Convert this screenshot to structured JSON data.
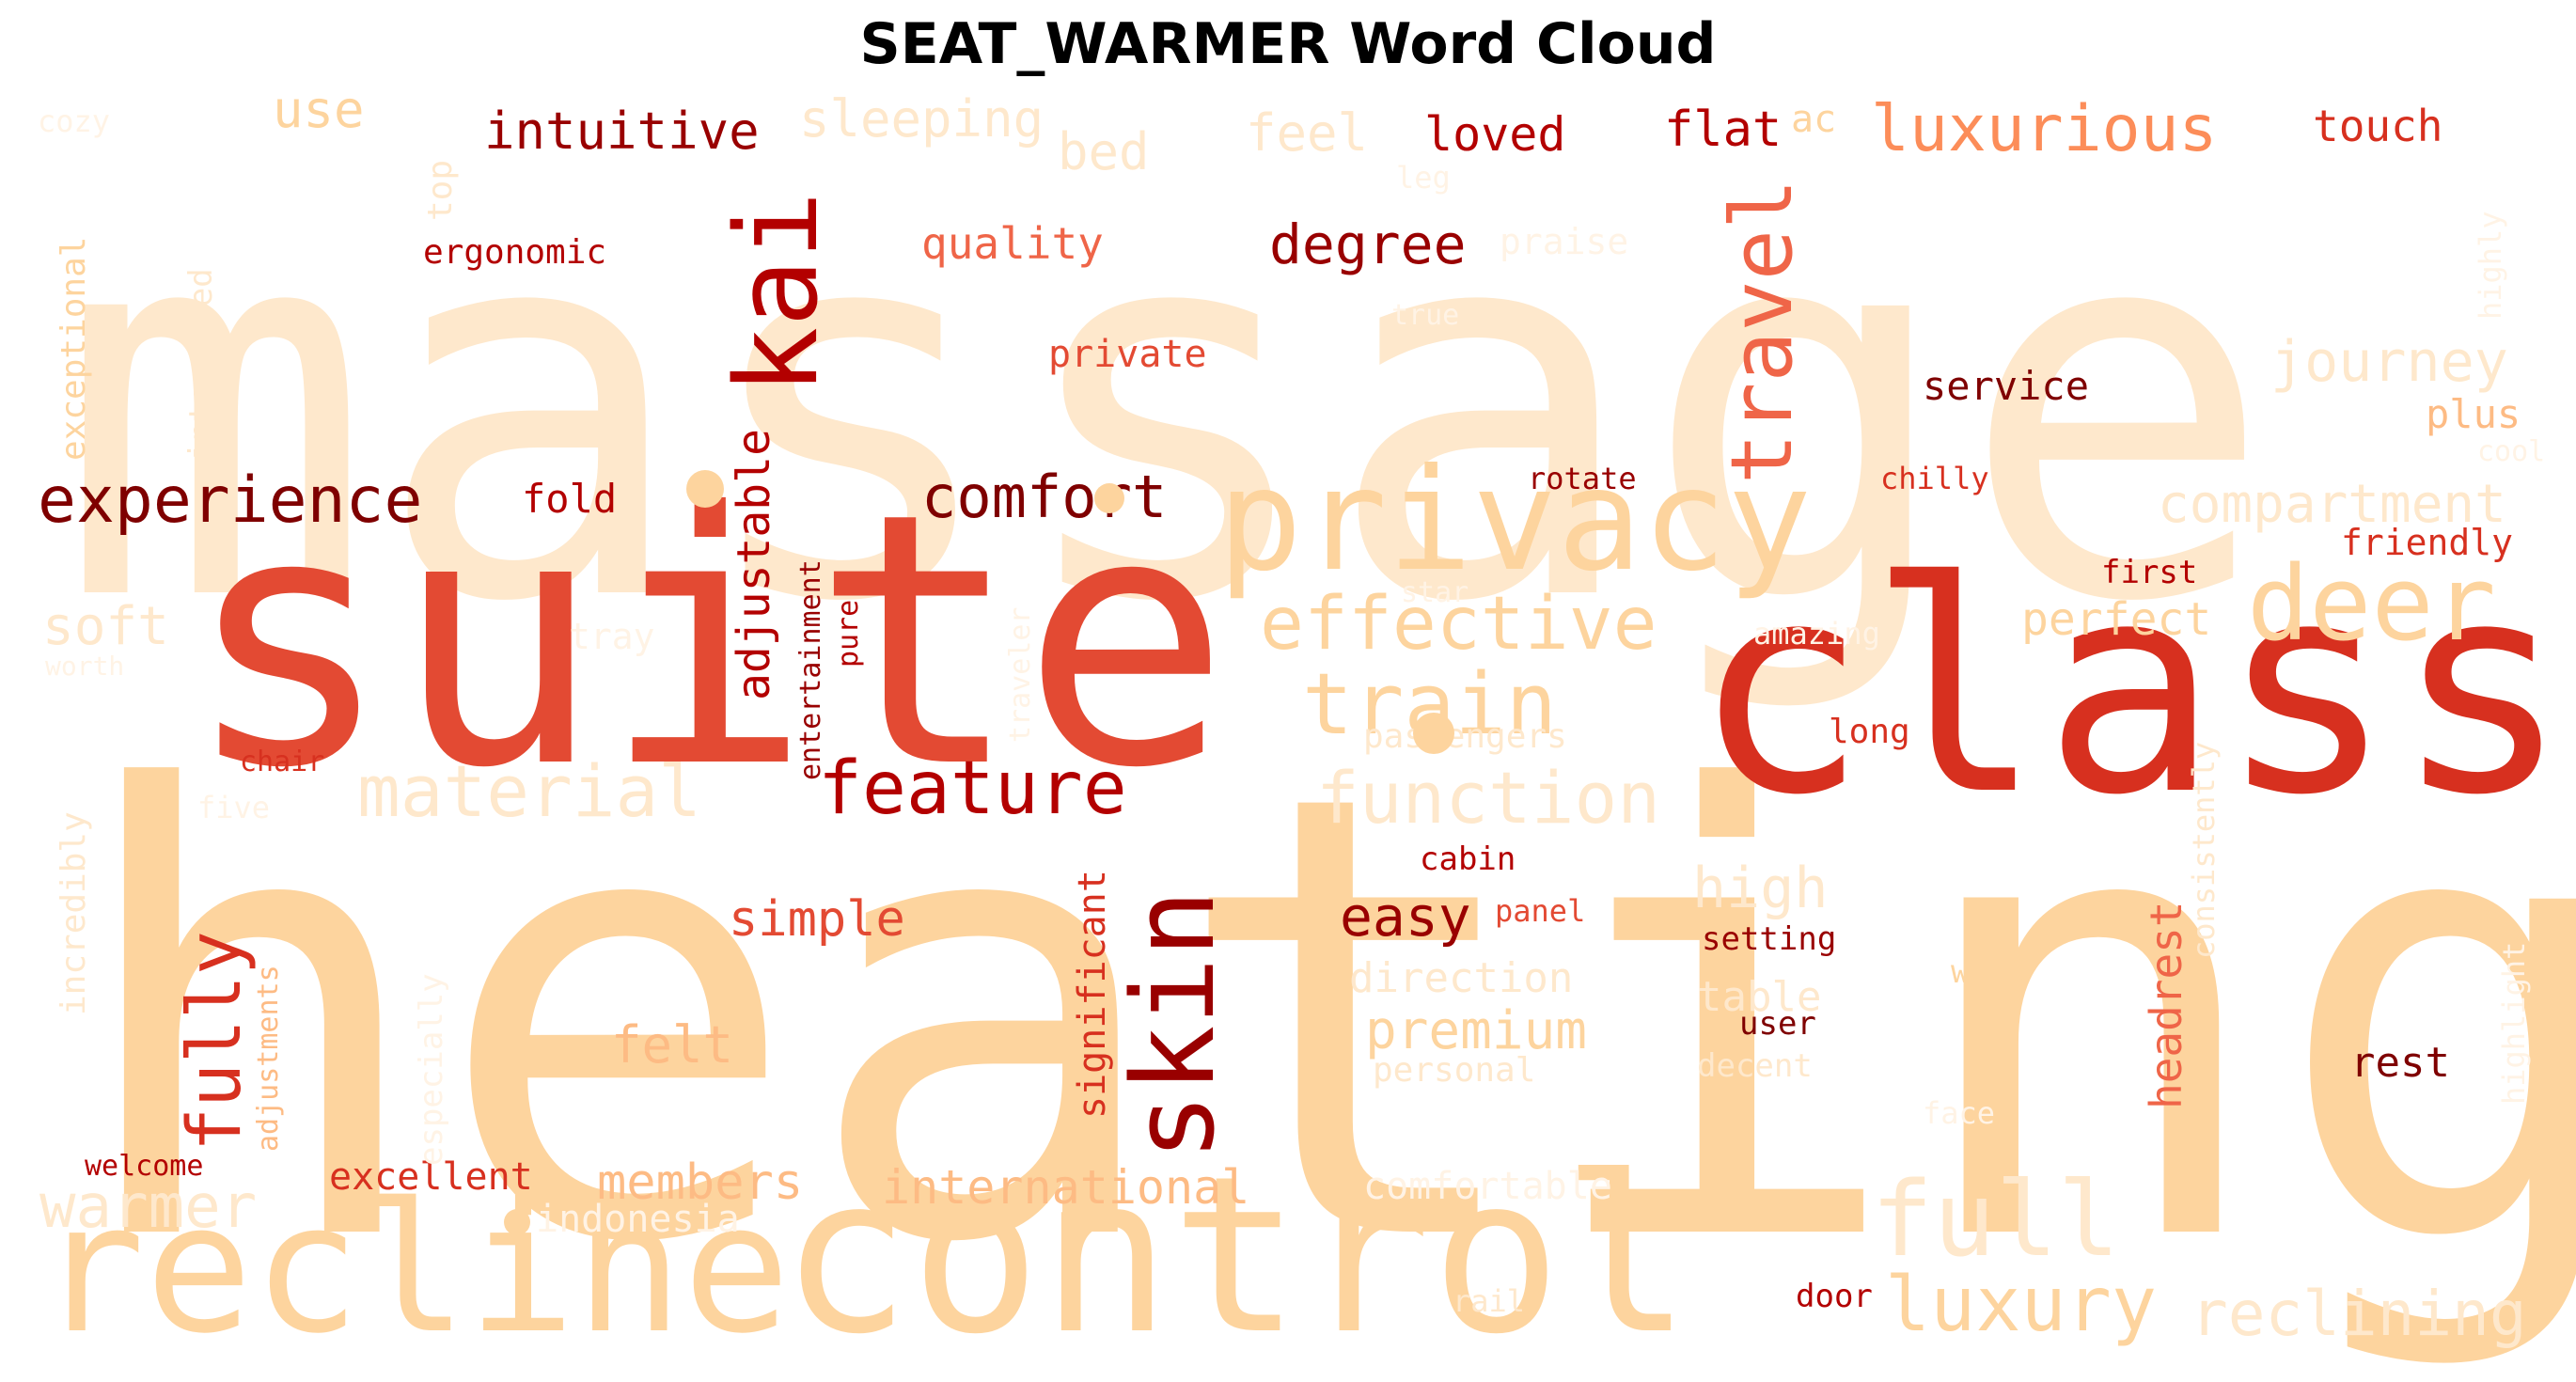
{
  "chart_data": {
    "type": "wordcloud",
    "title": "SEAT_WARMER Word Cloud",
    "colormap": "OrRd",
    "background": "#ffffff",
    "words": [
      {
        "text": "massage",
        "color": "#fee8cc"
      },
      {
        "text": "heating",
        "color": "#fdd49e"
      },
      {
        "text": "suite",
        "color": "#e34a33"
      },
      {
        "text": "class",
        "color": "#d7301f"
      },
      {
        "text": "control",
        "color": "#fdd49e"
      },
      {
        "text": "recline",
        "color": "#fdd49e"
      },
      {
        "text": "privacy",
        "color": "#fdd49e"
      },
      {
        "text": "kai",
        "color": "#b30000"
      },
      {
        "text": "skin",
        "color": "#990000"
      },
      {
        "text": "travel",
        "color": "#ef6548"
      },
      {
        "text": "deer",
        "color": "#fdd49e"
      },
      {
        "text": "full",
        "color": "#fee8cc"
      },
      {
        "text": "luxury",
        "color": "#fdd49e"
      },
      {
        "text": "train",
        "color": "#fdd49e"
      },
      {
        "text": "experience",
        "color": "#7f0000"
      },
      {
        "text": "effective",
        "color": "#fdd49e"
      },
      {
        "text": "feature",
        "color": "#b30000"
      },
      {
        "text": "function",
        "color": "#fee8cc"
      },
      {
        "text": "material",
        "color": "#fee8cc"
      },
      {
        "text": "comfort",
        "color": "#7f0000"
      },
      {
        "text": "luxurious",
        "color": "#fc8d59"
      },
      {
        "text": "fully",
        "color": "#d7301f"
      },
      {
        "text": "warmer",
        "color": "#fee8cc"
      },
      {
        "text": "reclining",
        "color": "#fee8cc"
      },
      {
        "text": "intuitive",
        "color": "#990000"
      },
      {
        "text": "journey",
        "color": "#fee8cc"
      },
      {
        "text": "compartment",
        "color": "#fee8cc"
      },
      {
        "text": "degree",
        "color": "#990000"
      },
      {
        "text": "high",
        "color": "#fee8cc"
      },
      {
        "text": "easy",
        "color": "#990000"
      },
      {
        "text": "premium",
        "color": "#fdd49e"
      },
      {
        "text": "members",
        "color": "#fdbb84"
      },
      {
        "text": "international",
        "color": "#fdbb84"
      },
      {
        "text": "sleeping",
        "color": "#fee8cc"
      },
      {
        "text": "soft",
        "color": "#fee8cc"
      },
      {
        "text": "felt",
        "color": "#fdbb84"
      },
      {
        "text": "simple",
        "color": "#e34a33"
      },
      {
        "text": "adjustable",
        "color": "#b30000"
      },
      {
        "text": "perfect",
        "color": "#fdd49e"
      },
      {
        "text": "use",
        "color": "#fdd49e"
      },
      {
        "text": "bed",
        "color": "#fee8cc"
      },
      {
        "text": "feel",
        "color": "#fee8cc"
      },
      {
        "text": "loved",
        "color": "#b30000"
      },
      {
        "text": "flat",
        "color": "#b30000"
      },
      {
        "text": "touch",
        "color": "#d7301f"
      },
      {
        "text": "quality",
        "color": "#ef6548"
      },
      {
        "text": "headrest",
        "color": "#ef6548"
      },
      {
        "text": "excellent",
        "color": "#d7301f"
      },
      {
        "text": "direction",
        "color": "#fee8cc"
      },
      {
        "text": "table",
        "color": "#fee8cc"
      },
      {
        "text": "comfortable",
        "color": "#fff3e5"
      },
      {
        "text": "significant",
        "color": "#d7301f"
      },
      {
        "text": "rest",
        "color": "#7f0000"
      },
      {
        "text": "service",
        "color": "#7f0000"
      },
      {
        "text": "plus",
        "color": "#fdbb84"
      },
      {
        "text": "fold",
        "color": "#b30000"
      },
      {
        "text": "private",
        "color": "#e34a33"
      },
      {
        "text": "ergonomic",
        "color": "#b30000"
      },
      {
        "text": "friendly",
        "color": "#d7301f"
      },
      {
        "text": "exceptional",
        "color": "#fdd49e"
      },
      {
        "text": "incredibly",
        "color": "#fee8cc"
      },
      {
        "text": "personal",
        "color": "#fee8cc"
      },
      {
        "text": "indonesia",
        "color": "#fff3e5"
      },
      {
        "text": "integrated",
        "color": "#fee8cc"
      },
      {
        "text": "especially",
        "color": "#fff3e5"
      },
      {
        "text": "adjustments",
        "color": "#fdbb84"
      },
      {
        "text": "cabin",
        "color": "#b30000"
      },
      {
        "text": "setting",
        "color": "#990000"
      },
      {
        "text": "user",
        "color": "#7f0000"
      },
      {
        "text": "long",
        "color": "#d7301f"
      },
      {
        "text": "first",
        "color": "#b30000"
      },
      {
        "text": "rotate",
        "color": "#990000"
      },
      {
        "text": "chilly",
        "color": "#d7301f"
      },
      {
        "text": "panel",
        "color": "#e34a33"
      },
      {
        "text": "door",
        "color": "#b30000"
      },
      {
        "text": "chair",
        "color": "#d7301f"
      },
      {
        "text": "welcome",
        "color": "#b30000"
      },
      {
        "text": "entertainment",
        "color": "#990000"
      },
      {
        "text": "pure",
        "color": "#b30000"
      },
      {
        "text": "passengers",
        "color": "#fee8cc"
      },
      {
        "text": "work",
        "color": "#fdd49e"
      },
      {
        "text": "decent",
        "color": "#fee8cc"
      },
      {
        "text": "praise",
        "color": "#fff3e5"
      },
      {
        "text": "tray",
        "color": "#fff3e5"
      },
      {
        "text": "top",
        "color": "#fee8cc"
      },
      {
        "text": "consistently",
        "color": "#fee8cc"
      },
      {
        "text": "highlight",
        "color": "#fff3e5"
      },
      {
        "text": "highly",
        "color": "#fff3e5"
      },
      {
        "text": "amazing",
        "color": "#fff3e5"
      },
      {
        "text": "face",
        "color": "#fff3e5"
      },
      {
        "text": "rail",
        "color": "#fee8cc"
      },
      {
        "text": "cozy",
        "color": "#fff3e5"
      },
      {
        "text": "five",
        "color": "#fff3e5"
      },
      {
        "text": "worth",
        "color": "#fff3e5"
      },
      {
        "text": "star",
        "color": "#fff3e5"
      },
      {
        "text": "traveler",
        "color": "#fff3e5"
      },
      {
        "text": "true",
        "color": "#fff3e5"
      },
      {
        "text": "leg",
        "color": "#fff3e5"
      },
      {
        "text": "ac",
        "color": "#fdd49e"
      },
      {
        "text": "cool",
        "color": "#fff3e5"
      }
    ]
  }
}
